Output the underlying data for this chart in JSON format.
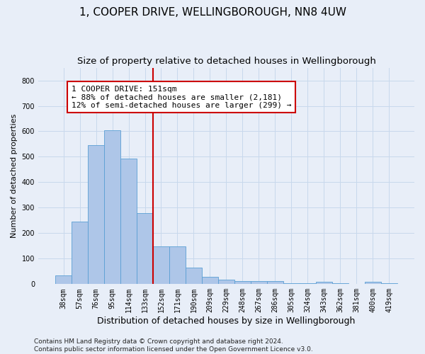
{
  "title": "1, COOPER DRIVE, WELLINGBOROUGH, NN8 4UW",
  "subtitle": "Size of property relative to detached houses in Wellingborough",
  "xlabel": "Distribution of detached houses by size in Wellingborough",
  "ylabel": "Number of detached properties",
  "categories": [
    "38sqm",
    "57sqm",
    "76sqm",
    "95sqm",
    "114sqm",
    "133sqm",
    "152sqm",
    "171sqm",
    "190sqm",
    "209sqm",
    "229sqm",
    "248sqm",
    "267sqm",
    "286sqm",
    "305sqm",
    "324sqm",
    "343sqm",
    "362sqm",
    "381sqm",
    "400sqm",
    "419sqm"
  ],
  "values": [
    33,
    245,
    545,
    605,
    493,
    278,
    148,
    148,
    65,
    30,
    18,
    13,
    12,
    12,
    5,
    5,
    8,
    3,
    2,
    8,
    5
  ],
  "bar_color": "#aec6e8",
  "bar_edge_color": "#5a9fd4",
  "vline_x_index": 6,
  "vline_color": "#cc0000",
  "annotation_line1": "1 COOPER DRIVE: 151sqm",
  "annotation_line2": "← 88% of detached houses are smaller (2,181)",
  "annotation_line3": "12% of semi-detached houses are larger (299) →",
  "annotation_box_facecolor": "#ffffff",
  "annotation_box_edgecolor": "#cc0000",
  "ylim": [
    0,
    850
  ],
  "yticks": [
    0,
    100,
    200,
    300,
    400,
    500,
    600,
    700,
    800
  ],
  "grid_color": "#c8d8ec",
  "background_color": "#e8eef8",
  "footnote_line1": "Contains HM Land Registry data © Crown copyright and database right 2024.",
  "footnote_line2": "Contains public sector information licensed under the Open Government Licence v3.0.",
  "title_fontsize": 11,
  "subtitle_fontsize": 9.5,
  "xlabel_fontsize": 9,
  "ylabel_fontsize": 8,
  "tick_fontsize": 7,
  "annotation_fontsize": 8,
  "footnote_fontsize": 6.5
}
